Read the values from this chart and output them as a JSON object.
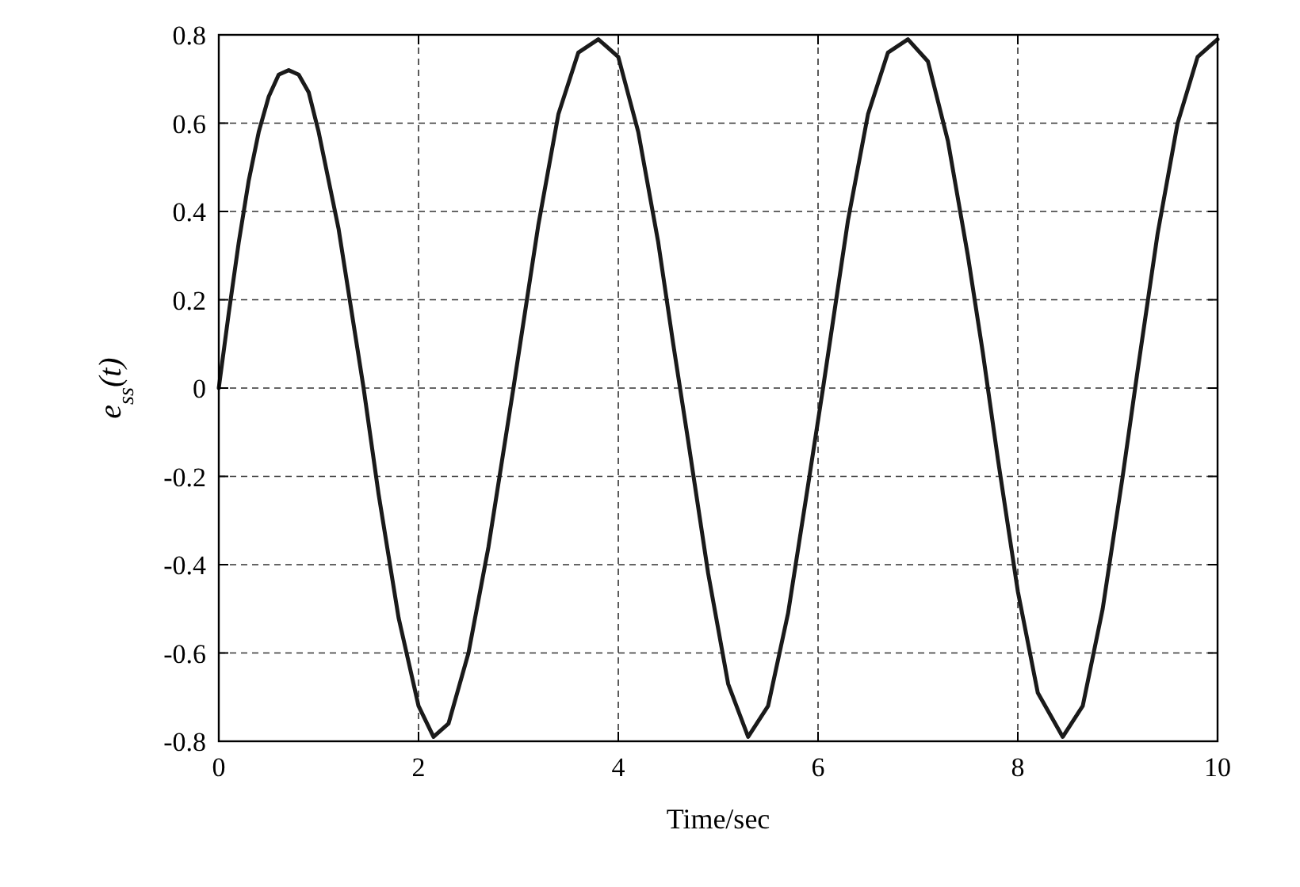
{
  "chart_data": {
    "type": "line",
    "xlabel": "Time/sec",
    "ylabel": "e$_{ss}$(t)",
    "xlim": [
      0,
      10
    ],
    "ylim": [
      -0.8,
      0.8
    ],
    "xticks": [
      0,
      2,
      4,
      6,
      8,
      10
    ],
    "yticks": [
      -0.8,
      -0.6,
      -0.4,
      -0.2,
      0,
      0.2,
      0.4,
      0.6,
      0.8
    ],
    "grid": true,
    "line_style": "solid",
    "x": [
      0,
      0.1,
      0.2,
      0.3,
      0.4,
      0.5,
      0.6,
      0.7,
      0.8,
      0.9,
      1.0,
      1.2,
      1.45,
      1.6,
      1.8,
      2.0,
      2.15,
      2.3,
      2.5,
      2.7,
      2.95,
      3.2,
      3.4,
      3.6,
      3.8,
      4.0,
      4.2,
      4.4,
      4.55,
      4.7,
      4.9,
      5.1,
      5.3,
      5.5,
      5.7,
      5.9,
      6.05,
      6.3,
      6.5,
      6.7,
      6.9,
      7.1,
      7.3,
      7.5,
      7.65,
      7.8,
      8.0,
      8.2,
      8.45,
      8.65,
      8.85,
      9.05,
      9.2,
      9.4,
      9.6,
      9.8,
      10
    ],
    "series": [
      {
        "color": "#1a1a1a",
        "values": [
          0,
          0.17,
          0.33,
          0.47,
          0.58,
          0.66,
          0.71,
          0.72,
          0.71,
          0.67,
          0.58,
          0.36,
          0.0,
          -0.24,
          -0.52,
          -0.72,
          -0.79,
          -0.76,
          -0.6,
          -0.36,
          0.0,
          0.37,
          0.62,
          0.76,
          0.79,
          0.75,
          0.58,
          0.33,
          0.1,
          -0.12,
          -0.42,
          -0.67,
          -0.79,
          -0.72,
          -0.51,
          -0.22,
          0.0,
          0.38,
          0.62,
          0.76,
          0.79,
          0.74,
          0.56,
          0.3,
          0.08,
          -0.16,
          -0.46,
          -0.69,
          -0.79,
          -0.72,
          -0.5,
          -0.2,
          0.04,
          0.35,
          0.6,
          0.75,
          0.79
        ]
      }
    ]
  }
}
